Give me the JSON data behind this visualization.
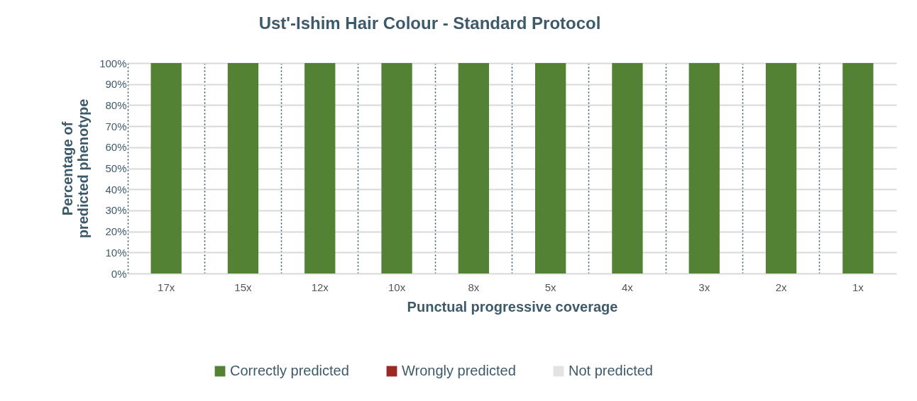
{
  "chart_data": {
    "type": "bar",
    "title": "Ust'-Ishim Hair Colour - Standard Protocol",
    "xlabel": "Punctual progressive coverage",
    "ylabel": "Percentage of predicted phenotype",
    "categories": [
      "17x",
      "15x",
      "12x",
      "10x",
      "8x",
      "5x",
      "4x",
      "3x",
      "2x",
      "1x"
    ],
    "series": [
      {
        "name": "Correctly predicted",
        "color": "#548235",
        "values": [
          100,
          100,
          100,
          100,
          100,
          100,
          100,
          100,
          100,
          100
        ]
      },
      {
        "name": "Wrongly predicted",
        "color": "#9c2a23",
        "values": [
          0,
          0,
          0,
          0,
          0,
          0,
          0,
          0,
          0,
          0
        ]
      },
      {
        "name": "Not predicted",
        "color": "#e3e3e3",
        "values": [
          0,
          0,
          0,
          0,
          0,
          0,
          0,
          0,
          0,
          0
        ]
      }
    ],
    "stacked": true,
    "ylim": [
      0,
      100
    ],
    "yticks": [
      {
        "value": 0,
        "label": "0%"
      },
      {
        "value": 10,
        "label": "10%"
      },
      {
        "value": 20,
        "label": "20%"
      },
      {
        "value": 30,
        "label": "30%"
      },
      {
        "value": 40,
        "label": "40%"
      },
      {
        "value": 50,
        "label": "50%"
      },
      {
        "value": 60,
        "label": "60%"
      },
      {
        "value": 70,
        "label": "70%"
      },
      {
        "value": 80,
        "label": "80%"
      },
      {
        "value": 90,
        "label": "90%"
      },
      {
        "value": 100,
        "label": "100%"
      }
    ],
    "grid": true,
    "legend": "bottom"
  }
}
